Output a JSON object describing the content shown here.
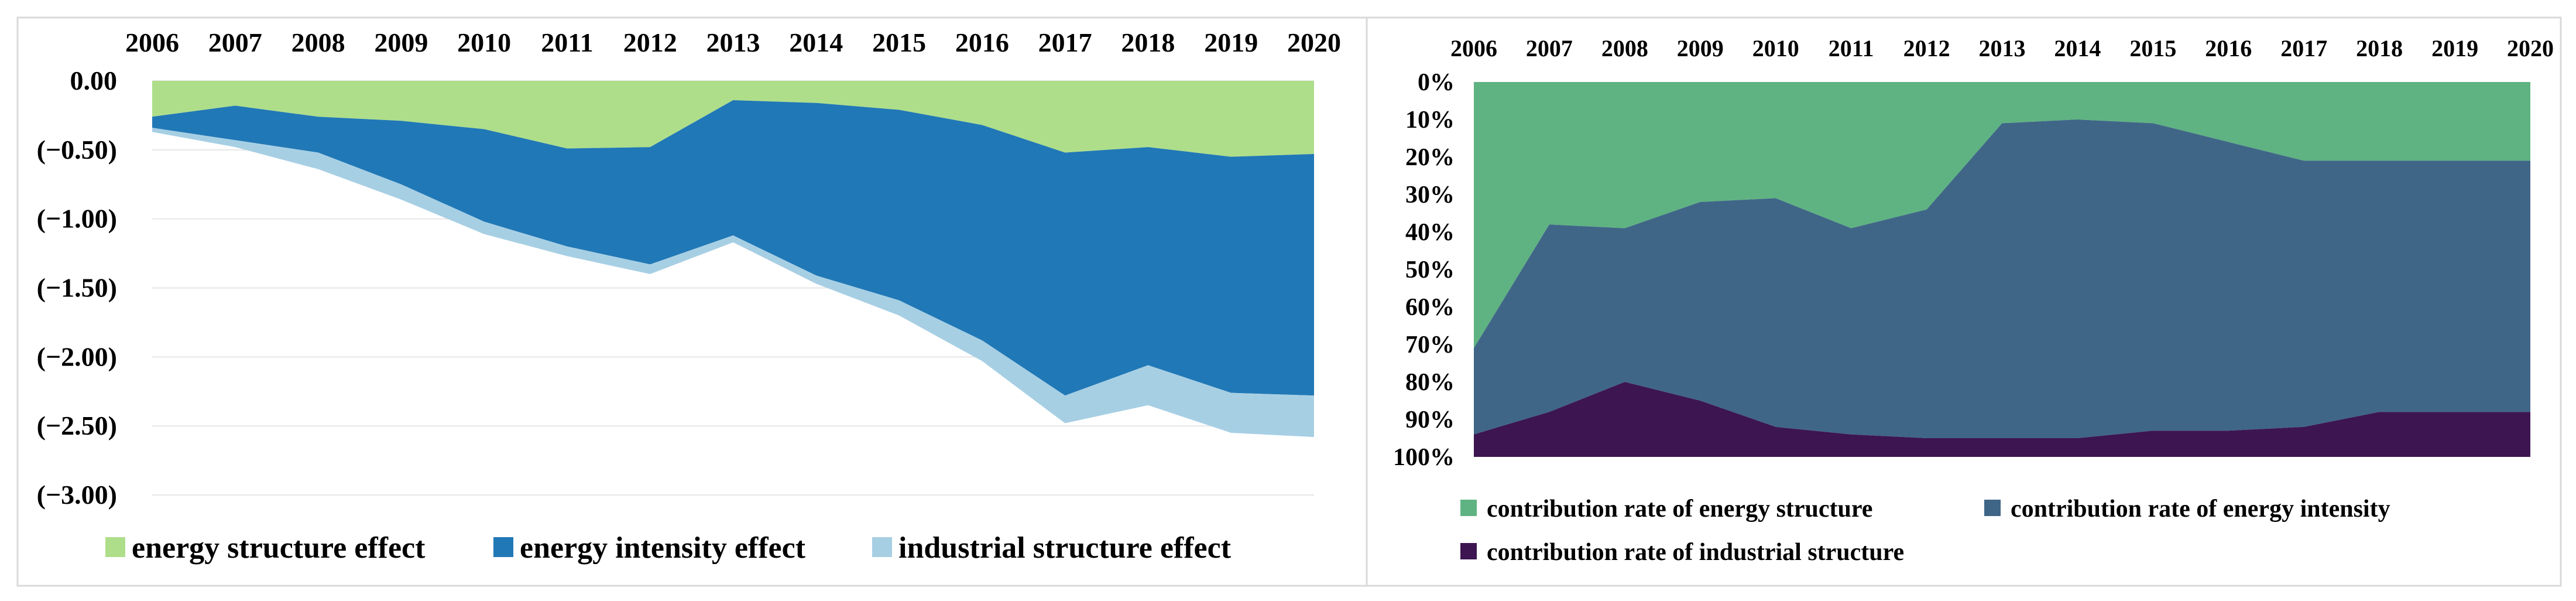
{
  "chart_data": [
    {
      "type": "area",
      "title": "",
      "xlabel": "",
      "ylabel": "",
      "x": [
        "2006",
        "2007",
        "2008",
        "2009",
        "2010",
        "2011",
        "2012",
        "2013",
        "2014",
        "2015",
        "2016",
        "2017",
        "2018",
        "2019",
        "2020"
      ],
      "yticks": [
        "0.00",
        "(−0.50)",
        "(−1.00)",
        "(−1.50)",
        "(−2.00)",
        "(−2.50)",
        "(−3.00)"
      ],
      "ylim": [
        -3.0,
        0.0
      ],
      "series": [
        {
          "name": "energy structure effect",
          "color": "#aede8a",
          "values": [
            -0.26,
            -0.18,
            -0.26,
            -0.29,
            -0.35,
            -0.49,
            -0.48,
            -0.14,
            -0.16,
            -0.21,
            -0.32,
            -0.52,
            -0.48,
            -0.55,
            -0.53
          ]
        },
        {
          "name": "energy intensity effect",
          "color": "#2178b6",
          "values": [
            -0.08,
            -0.25,
            -0.26,
            -0.46,
            -0.67,
            -0.71,
            -0.85,
            -0.98,
            -1.25,
            -1.38,
            -1.56,
            -1.76,
            -1.58,
            -1.71,
            -1.75
          ]
        },
        {
          "name": "industrial structure effect",
          "color": "#a7cfe4",
          "values": [
            -0.03,
            -0.05,
            -0.12,
            -0.11,
            -0.09,
            -0.07,
            -0.07,
            -0.05,
            -0.06,
            -0.11,
            -0.15,
            -0.2,
            -0.29,
            -0.29,
            -0.3
          ]
        }
      ]
    },
    {
      "type": "area",
      "title": "",
      "xlabel": "",
      "ylabel": "",
      "x": [
        "2006",
        "2007",
        "2008",
        "2009",
        "2010",
        "2011",
        "2012",
        "2013",
        "2014",
        "2015",
        "2016",
        "2017",
        "2018",
        "2019",
        "2020"
      ],
      "yticks": [
        "0%",
        "10%",
        "20%",
        "30%",
        "40%",
        "50%",
        "60%",
        "70%",
        "80%",
        "90%",
        "100%"
      ],
      "ylim": [
        0,
        100
      ],
      "series": [
        {
          "name": "contribution rate of energy structure",
          "color": "#5fb382",
          "values": [
            71,
            38,
            39,
            32,
            31,
            39,
            34,
            11,
            10,
            11,
            16,
            21,
            21,
            21,
            21
          ]
        },
        {
          "name": "contribution rate of energy intensity",
          "color": "#3f6687",
          "values": [
            23,
            50,
            41,
            53,
            61,
            55,
            61,
            84,
            85,
            82,
            77,
            71,
            67,
            67,
            67
          ]
        },
        {
          "name": "contribution rate of industrial structure",
          "color": "#3c1551",
          "values": [
            6,
            12,
            20,
            15,
            8,
            6,
            5,
            5,
            5,
            7,
            7,
            8,
            12,
            12,
            12
          ]
        }
      ]
    }
  ]
}
